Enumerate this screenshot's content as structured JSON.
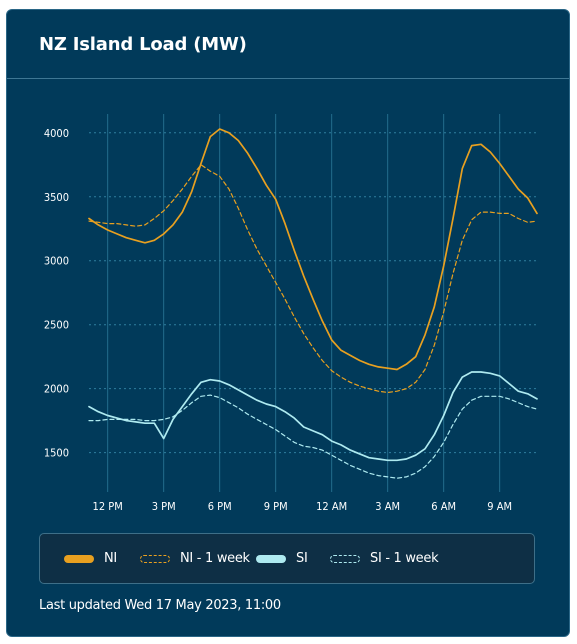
{
  "card": {
    "title": "NZ Island Load (MW)",
    "footer": "Last updated Wed 17 May 2023, 11:00"
  },
  "colors": {
    "background": "#013a5a",
    "ni": "#e8a020",
    "si": "#aeeaf0",
    "grid": "#2f7e9e",
    "text": "#ffffff"
  },
  "chart_data": {
    "type": "line",
    "title": "NZ Island Load (MW)",
    "xlabel": "",
    "ylabel": "",
    "ylim": [
      1200,
      4100
    ],
    "yticks": [
      1500,
      2000,
      2500,
      3000,
      3500,
      4000
    ],
    "x_tick_labels": [
      "12 PM",
      "3 PM",
      "6 PM",
      "9 PM",
      "12 AM",
      "3 AM",
      "6 AM",
      "9 AM"
    ],
    "x_unit": "hours since 11:00",
    "x_tick_positions": [
      1,
      4,
      7,
      10,
      13,
      16,
      19,
      22
    ],
    "grid": true,
    "legend": "bottom",
    "x": [
      0.0,
      0.5,
      1.0,
      1.5,
      2.0,
      2.5,
      3.0,
      3.5,
      4.0,
      4.5,
      5.0,
      5.5,
      6.0,
      6.5,
      7.0,
      7.5,
      8.0,
      8.5,
      9.0,
      9.5,
      10.0,
      10.5,
      11.0,
      11.5,
      12.0,
      12.5,
      13.0,
      13.5,
      14.0,
      14.5,
      15.0,
      15.5,
      16.0,
      16.5,
      17.0,
      17.5,
      18.0,
      18.5,
      19.0,
      19.5,
      20.0,
      20.5,
      21.0,
      21.5,
      22.0,
      22.5,
      23.0,
      23.5,
      24.0
    ],
    "series": [
      {
        "name": "NI",
        "style": "solid",
        "color": "#e8a020",
        "values": [
          3330,
          3280,
          3240,
          3210,
          3180,
          3160,
          3140,
          3160,
          3210,
          3280,
          3380,
          3540,
          3760,
          3970,
          4030,
          4000,
          3940,
          3840,
          3720,
          3590,
          3480,
          3290,
          3080,
          2880,
          2700,
          2530,
          2380,
          2300,
          2260,
          2220,
          2190,
          2170,
          2160,
          2150,
          2190,
          2250,
          2420,
          2640,
          2960,
          3330,
          3720,
          3900,
          3910,
          3850,
          3760,
          3660,
          3560,
          3490,
          3370
        ]
      },
      {
        "name": "NI - 1 week",
        "style": "dashed",
        "color": "#e8a020",
        "values": [
          3310,
          3300,
          3290,
          3290,
          3280,
          3270,
          3280,
          3330,
          3390,
          3470,
          3560,
          3660,
          3750,
          3700,
          3660,
          3560,
          3410,
          3240,
          3090,
          2960,
          2830,
          2700,
          2560,
          2430,
          2320,
          2220,
          2140,
          2090,
          2050,
          2020,
          2000,
          1980,
          1970,
          1980,
          2000,
          2050,
          2150,
          2340,
          2600,
          2900,
          3160,
          3320,
          3380,
          3380,
          3370,
          3370,
          3330,
          3300,
          3310
        ]
      },
      {
        "name": "SI",
        "style": "solid",
        "color": "#aeeaf0",
        "values": [
          1860,
          1820,
          1790,
          1770,
          1750,
          1740,
          1730,
          1730,
          1610,
          1760,
          1860,
          1960,
          2050,
          2070,
          2060,
          2030,
          1990,
          1950,
          1910,
          1880,
          1860,
          1820,
          1770,
          1700,
          1670,
          1640,
          1590,
          1560,
          1520,
          1490,
          1460,
          1450,
          1440,
          1440,
          1450,
          1480,
          1530,
          1640,
          1790,
          1970,
          2090,
          2130,
          2130,
          2120,
          2100,
          2040,
          1980,
          1960,
          1920
        ]
      },
      {
        "name": "SI - 1 week",
        "style": "dashed",
        "color": "#aeeaf0",
        "values": [
          1750,
          1750,
          1760,
          1760,
          1760,
          1760,
          1750,
          1750,
          1760,
          1780,
          1830,
          1890,
          1940,
          1950,
          1930,
          1890,
          1850,
          1800,
          1760,
          1720,
          1680,
          1630,
          1580,
          1550,
          1540,
          1520,
          1480,
          1440,
          1400,
          1370,
          1340,
          1320,
          1310,
          1300,
          1310,
          1340,
          1390,
          1470,
          1580,
          1720,
          1840,
          1910,
          1940,
          1940,
          1940,
          1920,
          1890,
          1860,
          1840
        ]
      }
    ]
  }
}
